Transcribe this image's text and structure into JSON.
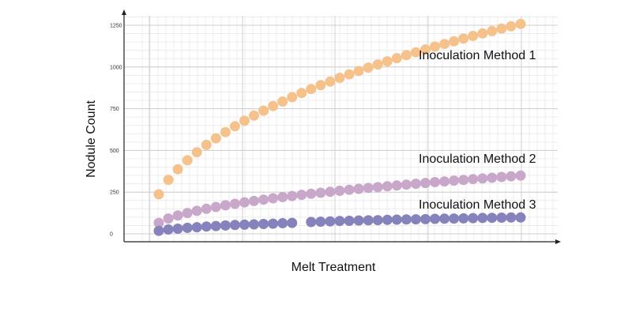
{
  "chart_data": {
    "type": "scatter",
    "title": "",
    "xlabel": "Melt Treatment",
    "ylabel": "Nodule Count",
    "ylim": [
      0,
      1250
    ],
    "yticks": [
      0,
      250,
      500,
      750,
      1000,
      1250
    ],
    "grid": true,
    "legend": "inline-labels",
    "series": [
      {
        "name": "Inoculation Method 1",
        "color": "#f5c28c",
        "values": [
          237,
          324,
          387,
          441,
          489,
          533,
          573,
          610,
          645,
          678,
          709,
          738,
          766,
          793,
          819,
          844,
          868,
          891,
          913,
          935,
          956,
          976,
          996,
          1015,
          1034,
          1053,
          1071,
          1088,
          1105,
          1122,
          1138,
          1154,
          1170,
          1186,
          1201,
          1215,
          1230,
          1244,
          1258
        ]
      },
      {
        "name": "Inoculation Method 2",
        "color": "#c8a7cb",
        "values": [
          66,
          92,
          110,
          125,
          138,
          150,
          161,
          171,
          180,
          189,
          197,
          205,
          213,
          220,
          227,
          234,
          240,
          246,
          252,
          258,
          264,
          270,
          275,
          280,
          285,
          290,
          295,
          300,
          305,
          310,
          314,
          319,
          323,
          328,
          332,
          336,
          341,
          345,
          349
        ]
      },
      {
        "name": "Inoculation Method 3",
        "color": "#8682bb",
        "values": [
          18,
          26,
          31,
          36,
          40,
          44,
          47,
          50,
          53,
          55,
          57,
          59,
          61,
          64,
          66,
          null,
          71,
          73,
          75,
          77,
          78,
          80,
          81,
          82,
          84,
          85,
          86,
          87,
          88,
          90,
          91,
          92,
          93,
          94,
          95,
          96,
          97,
          98,
          98
        ]
      }
    ]
  }
}
